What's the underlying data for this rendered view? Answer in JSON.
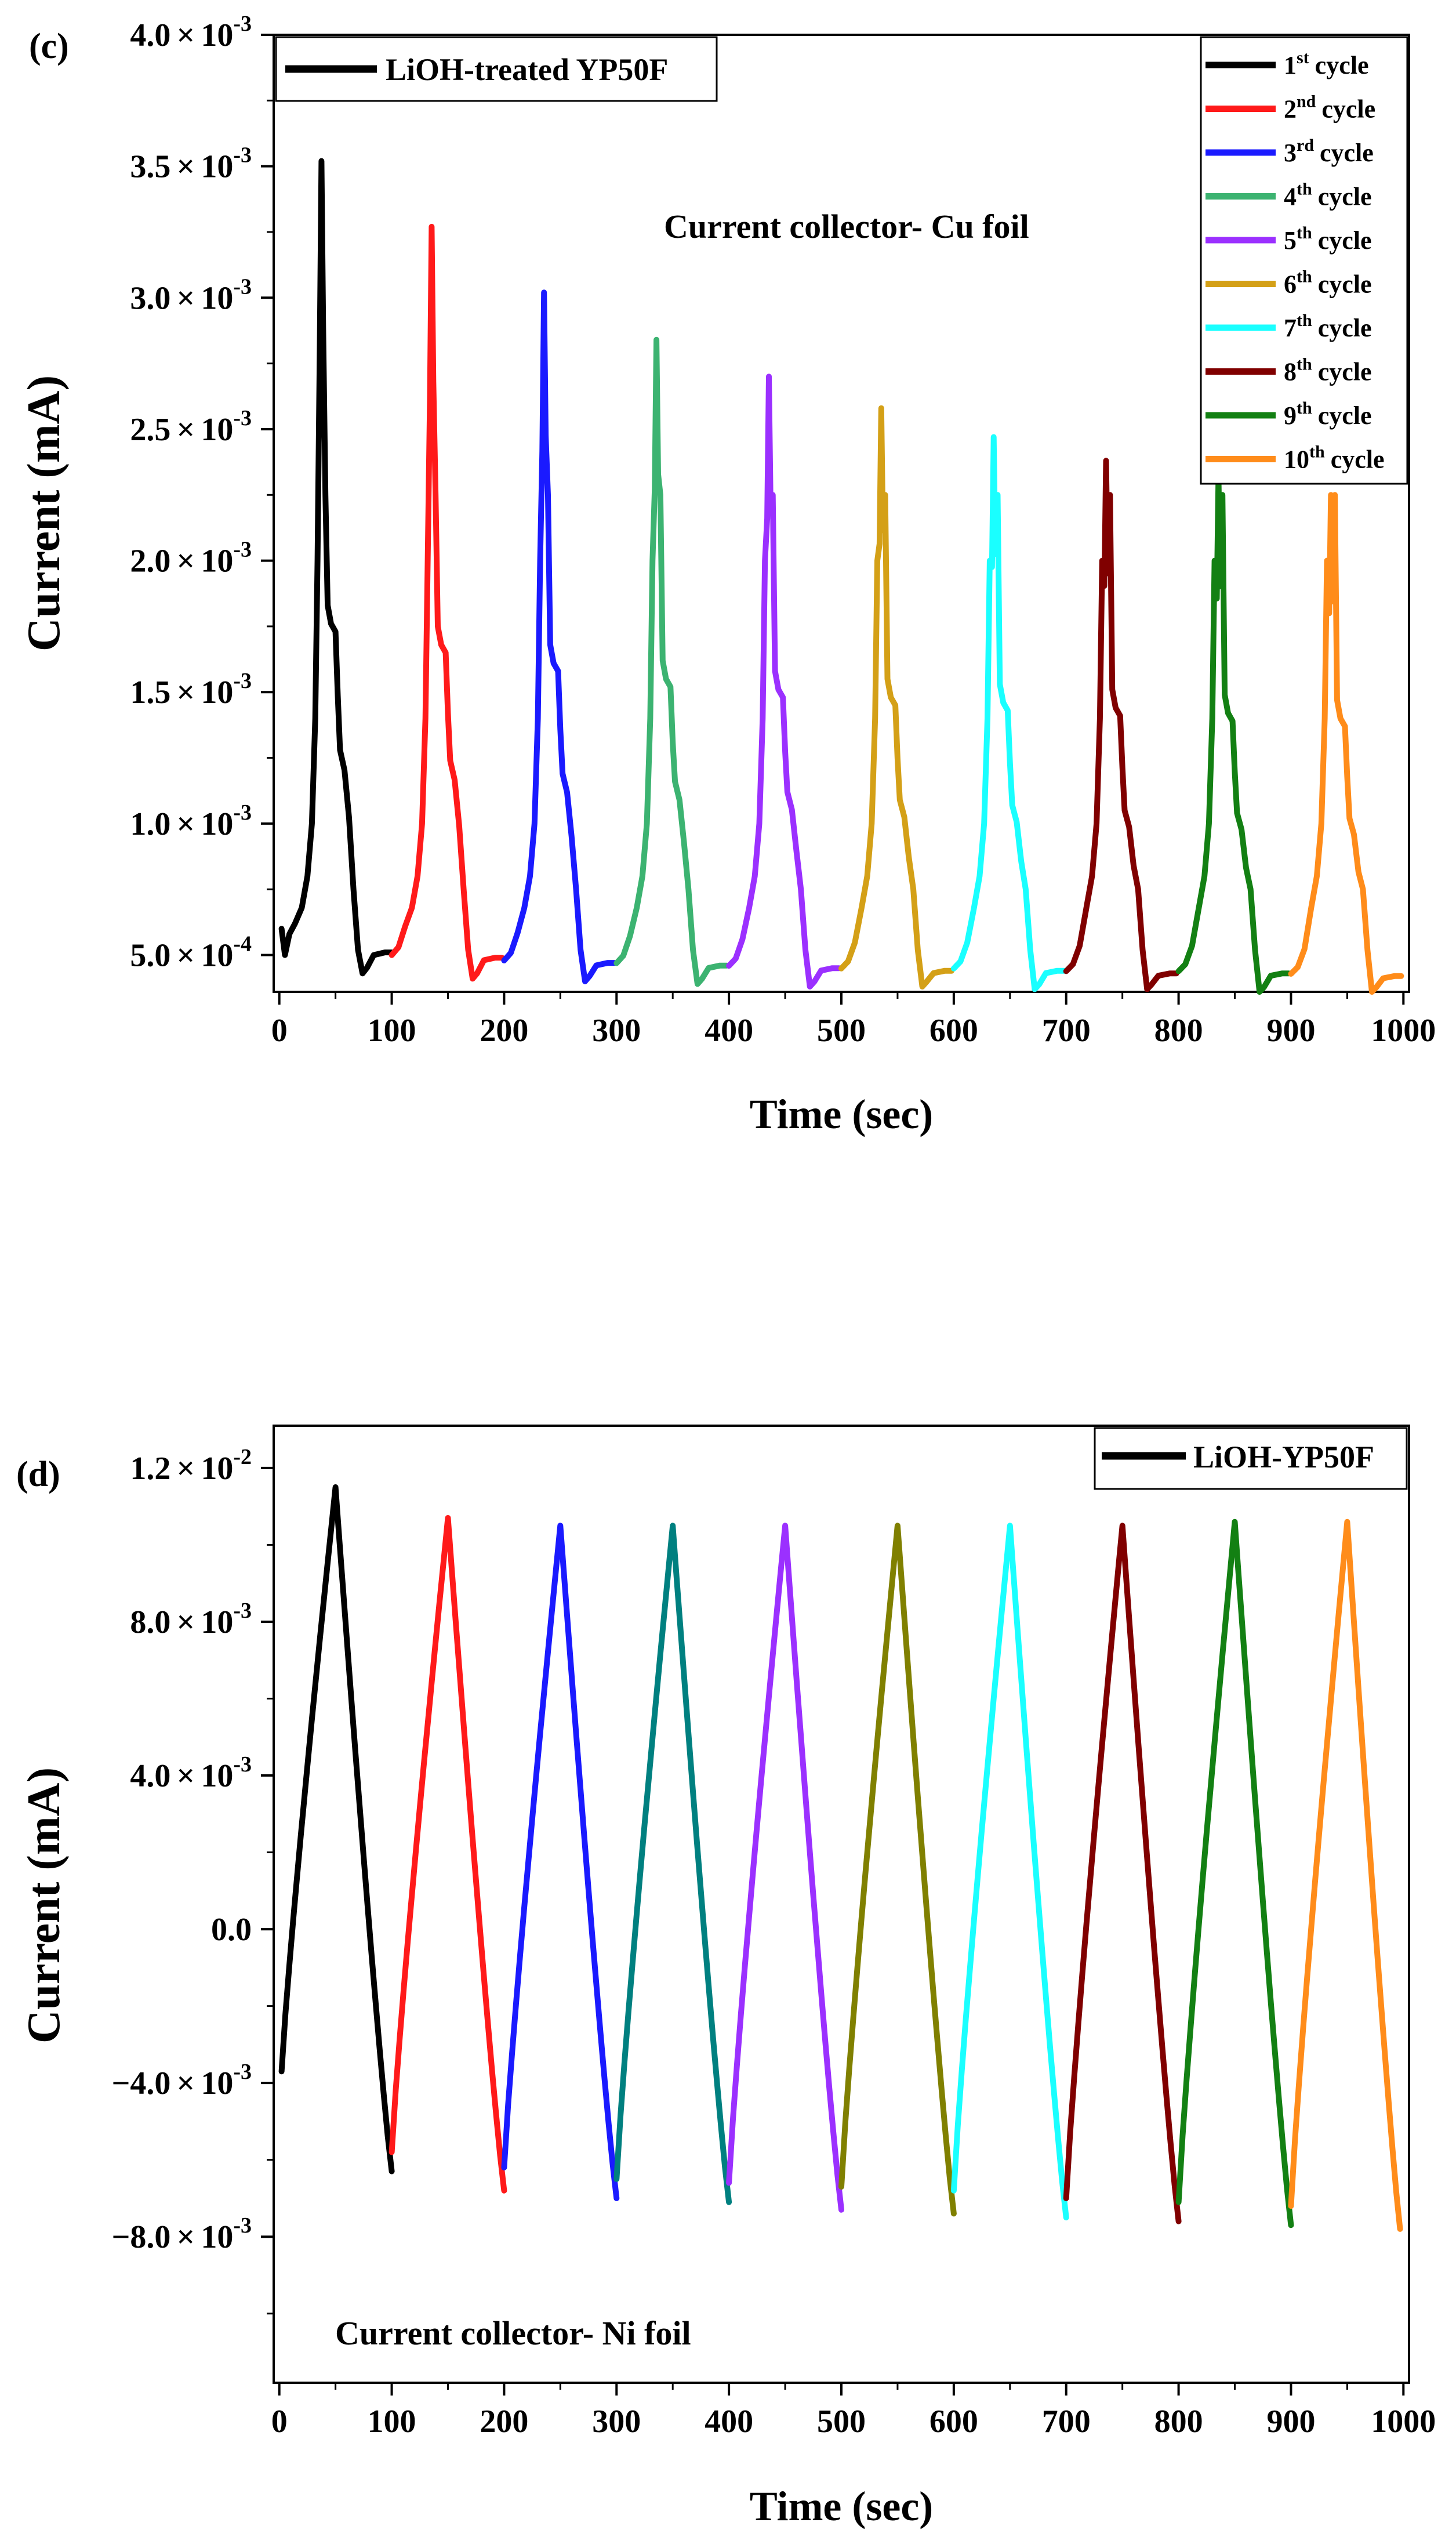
{
  "chart_data": [
    {
      "type": "line",
      "panel_label": "(c)",
      "xlabel": "Time (sec)",
      "ylabel": "Current (mA)",
      "xlim": [
        -5,
        1005
      ],
      "ylim": [
        0.00036,
        0.004
      ],
      "x_ticks": [
        0,
        100,
        200,
        300,
        400,
        500,
        600,
        700,
        800,
        900,
        1000
      ],
      "x_tick_labels": [
        "0",
        "100",
        "200",
        "300",
        "400",
        "500",
        "600",
        "700",
        "800",
        "900",
        "1000"
      ],
      "y_ticks": [
        0.0005,
        0.001,
        0.0015,
        0.002,
        0.0025,
        0.003,
        0.0035,
        0.004
      ],
      "y_tick_labels": [
        {
          "mant": "5.0",
          "exp": "-4"
        },
        {
          "mant": "1.0",
          "exp": "-3"
        },
        {
          "mant": "1.5",
          "exp": "-3"
        },
        {
          "mant": "2.0",
          "exp": "-3"
        },
        {
          "mant": "2.5",
          "exp": "-3"
        },
        {
          "mant": "3.0",
          "exp": "-3"
        },
        {
          "mant": "3.5",
          "exp": "-3"
        },
        {
          "mant": "4.0",
          "exp": "-3"
        }
      ],
      "times_sign": "×",
      "ten": "10",
      "sample_legend": "LiOH-treated YP50F",
      "annotation": "Current collector- Cu foil",
      "cycle_legend_word": "cycle",
      "cycles": [
        {
          "num": "1",
          "sup": "st",
          "color": "#000000",
          "peak": 0.00352,
          "shoulder1": 0.00173,
          "shoulder2": 0.00128,
          "min": 0.00043,
          "end": 0.00051
        },
        {
          "num": "2",
          "sup": "nd",
          "color": "#ff1a1a",
          "peak": 0.00327,
          "shoulder1": 0.00165,
          "shoulder2": 0.00124,
          "min": 0.00041,
          "end": 0.00049
        },
        {
          "num": "3",
          "sup": "rd",
          "color": "#1a1aff",
          "peak": 0.00302,
          "shoulder1": 0.00158,
          "shoulder2": 0.00119,
          "min": 0.0004,
          "end": 0.00047
        },
        {
          "num": "4",
          "sup": "th",
          "color": "#3cb371",
          "peak": 0.00284,
          "shoulder1": 0.00152,
          "shoulder2": 0.00116,
          "min": 0.00039,
          "end": 0.00046
        },
        {
          "num": "5",
          "sup": "th",
          "color": "#9b30ff",
          "peak": 0.0027,
          "shoulder1": 0.00148,
          "shoulder2": 0.00112,
          "min": 0.00038,
          "end": 0.00045
        },
        {
          "num": "6",
          "sup": "th",
          "color": "#d4a017",
          "peak": 0.00258,
          "shoulder1": 0.00145,
          "shoulder2": 0.00109,
          "min": 0.00038,
          "end": 0.00044
        },
        {
          "num": "7",
          "sup": "th",
          "color": "#1affff",
          "peak": 0.00247,
          "shoulder1": 0.00143,
          "shoulder2": 0.00107,
          "min": 0.00037,
          "end": 0.00044
        },
        {
          "num": "8",
          "sup": "th",
          "color": "#800000",
          "peak": 0.00238,
          "shoulder1": 0.00141,
          "shoulder2": 0.00105,
          "min": 0.00037,
          "end": 0.00043
        },
        {
          "num": "9",
          "sup": "th",
          "color": "#138013",
          "peak": 0.00232,
          "shoulder1": 0.00139,
          "shoulder2": 0.00104,
          "min": 0.00036,
          "end": 0.00043
        },
        {
          "num": "10",
          "sup": "th",
          "color": "#ff8c1a",
          "peak": 0.00225,
          "shoulder1": 0.00137,
          "shoulder2": 0.00102,
          "min": 0.00036,
          "end": 0.00042
        }
      ]
    },
    {
      "type": "line",
      "panel_label": "(d)",
      "xlabel": "Time (sec)",
      "ylabel": "Current (mA)",
      "xlim": [
        -5,
        1005
      ],
      "ylim": [
        -0.0118,
        0.0131
      ],
      "x_ticks": [
        0,
        100,
        200,
        300,
        400,
        500,
        600,
        700,
        800,
        900,
        1000
      ],
      "x_tick_labels": [
        "0",
        "100",
        "200",
        "300",
        "400",
        "500",
        "600",
        "700",
        "800",
        "900",
        "1000"
      ],
      "y_ticks": [
        -0.008,
        -0.004,
        0.0,
        0.004,
        0.008,
        0.012
      ],
      "y_tick_labels": [
        {
          "mant": "−8.0",
          "exp": "-3"
        },
        {
          "mant": "−4.0",
          "exp": "-3"
        },
        {
          "plain": "0.0"
        },
        {
          "mant": "4.0",
          "exp": "-3"
        },
        {
          "mant": "8.0",
          "exp": "-3"
        },
        {
          "mant": "1.2",
          "exp": "-2"
        }
      ],
      "y_minor_ticks": [
        -0.01,
        -0.006,
        -0.002,
        0.002,
        0.006,
        0.01
      ],
      "times_sign": "×",
      "ten": "10",
      "sample_legend": "LiOH-YP50F",
      "annotation": "Current collector- Ni foil",
      "series": [
        {
          "name": "cycle 1",
          "color": "#000000",
          "x": [
            2,
            50,
            100
          ],
          "y": [
            -0.0037,
            0.0115,
            -0.0063
          ]
        },
        {
          "name": "cycle 2",
          "color": "#ff1a1a",
          "x": [
            100,
            150,
            200
          ],
          "y": [
            -0.0058,
            0.0107,
            -0.0068
          ]
        },
        {
          "name": "cycle 3",
          "color": "#1a1aff",
          "x": [
            200,
            250,
            300
          ],
          "y": [
            -0.0062,
            0.0105,
            -0.007
          ]
        },
        {
          "name": "cycle 4",
          "color": "#008080",
          "x": [
            300,
            350,
            400
          ],
          "y": [
            -0.0065,
            0.0105,
            -0.0071
          ]
        },
        {
          "name": "cycle 5",
          "color": "#9b30ff",
          "x": [
            400,
            450,
            500
          ],
          "y": [
            -0.0066,
            0.0105,
            -0.0073
          ]
        },
        {
          "name": "cycle 6",
          "color": "#808000",
          "x": [
            500,
            550,
            600
          ],
          "y": [
            -0.0067,
            0.0105,
            -0.0074
          ]
        },
        {
          "name": "cycle 7",
          "color": "#1affff",
          "x": [
            600,
            650,
            700
          ],
          "y": [
            -0.0068,
            0.0105,
            -0.0075
          ]
        },
        {
          "name": "cycle 8",
          "color": "#800000",
          "x": [
            700,
            750,
            800
          ],
          "y": [
            -0.007,
            0.0105,
            -0.0076
          ]
        },
        {
          "name": "cycle 9",
          "color": "#138013",
          "x": [
            800,
            850,
            900
          ],
          "y": [
            -0.0071,
            0.0106,
            -0.0077
          ]
        },
        {
          "name": "cycle 10",
          "color": "#ff8c1a",
          "x": [
            900,
            950,
            997
          ],
          "y": [
            -0.0072,
            0.0106,
            -0.0078
          ]
        }
      ]
    }
  ]
}
